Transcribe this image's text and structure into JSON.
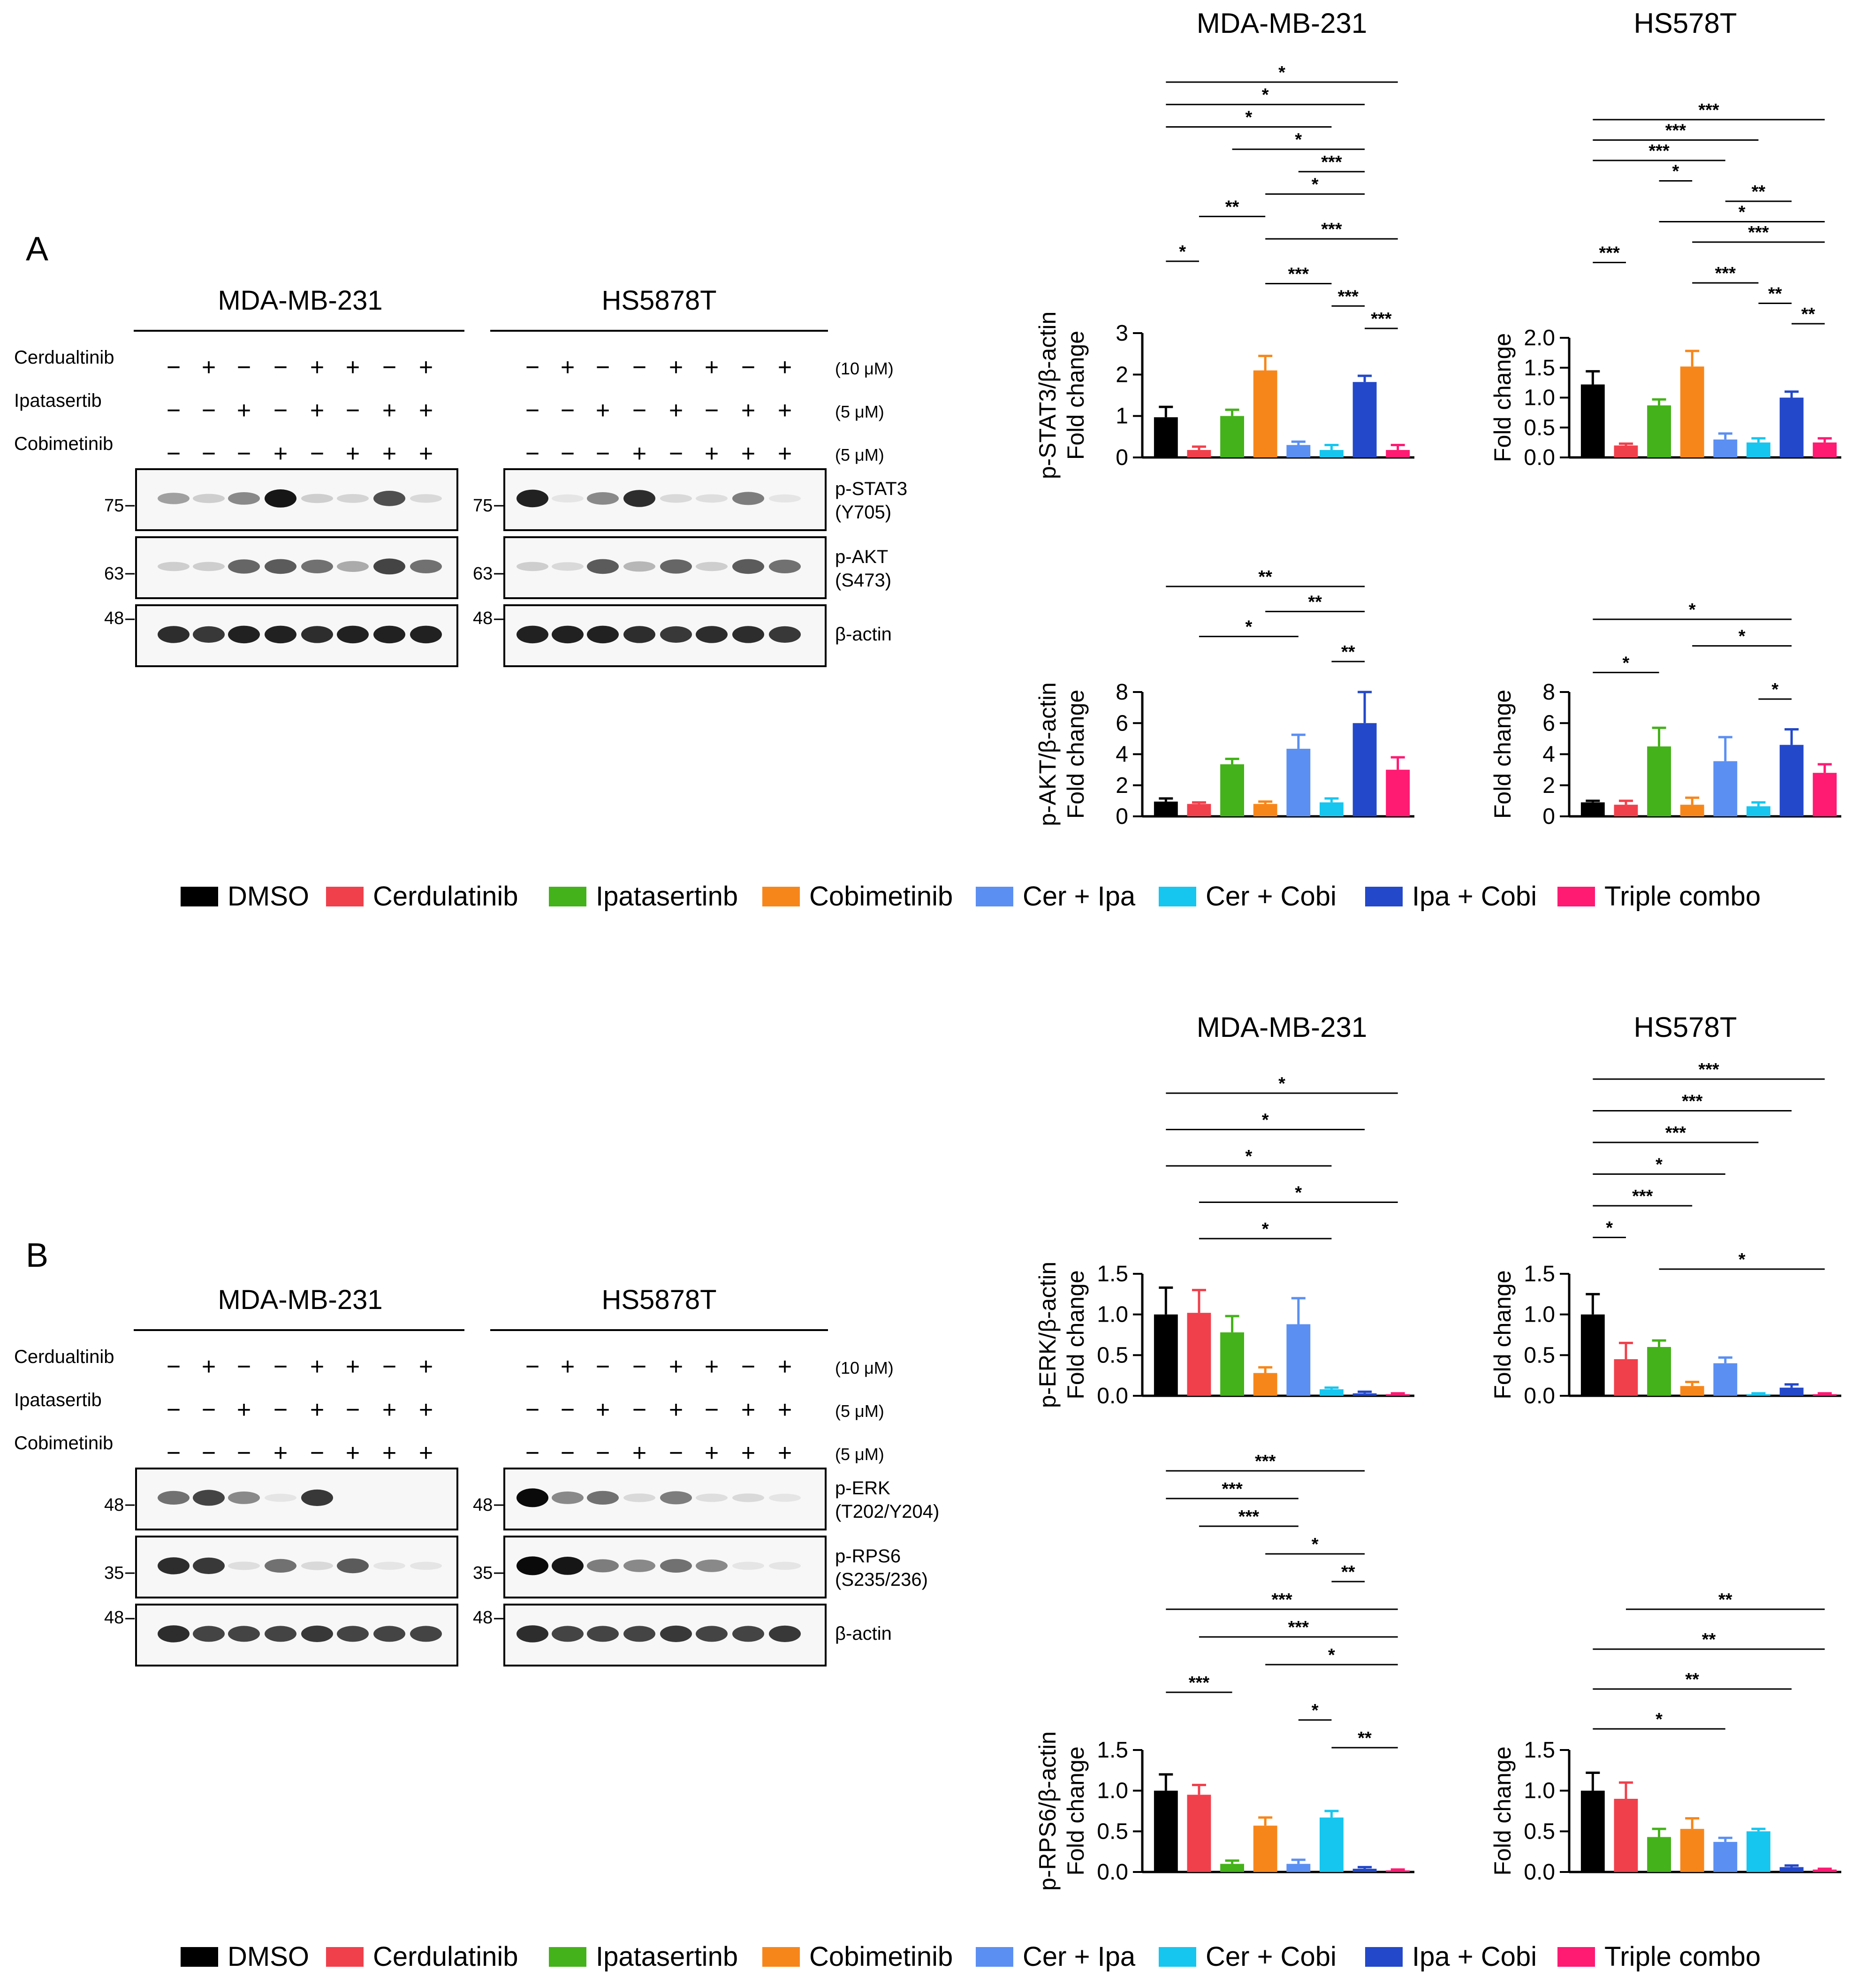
{
  "figure": {
    "panel_a_letter": "A",
    "panel_b_letter": "B"
  },
  "blots": {
    "panel_a": {
      "cell_lines": [
        "MDA-MB-231",
        "HS5878T"
      ],
      "treatment_rows": [
        {
          "name": "Cerdualtinib",
          "conc": "(10 μM)",
          "signs": [
            "−",
            "+",
            "−",
            "−",
            "+",
            "+",
            "−",
            "+"
          ]
        },
        {
          "name": "Ipatasertib",
          "conc": "(5 μM)",
          "signs": [
            "−",
            "−",
            "+",
            "−",
            "+",
            "−",
            "+",
            "+"
          ]
        },
        {
          "name": "Cobimetinib",
          "conc": "(5 μM)",
          "signs": [
            "−",
            "−",
            "−",
            "+",
            "−",
            "+",
            "+",
            "+"
          ]
        }
      ],
      "rows": [
        {
          "label1": "p-STAT3",
          "label2": "(Y705)",
          "marker": "75"
        },
        {
          "label1": "p-AKT",
          "label2": "(S473)",
          "marker": "63"
        },
        {
          "label1": "β-actin",
          "label2": "",
          "marker": "48"
        }
      ]
    },
    "panel_b": {
      "cell_lines": [
        "MDA-MB-231",
        "HS5878T"
      ],
      "treatment_rows": [
        {
          "name": "Cerdualtinib",
          "conc": "(10 μM)",
          "signs": [
            "−",
            "+",
            "−",
            "−",
            "+",
            "+",
            "−",
            "+"
          ]
        },
        {
          "name": "Ipatasertib",
          "conc": "(5 μM)",
          "signs": [
            "−",
            "−",
            "+",
            "−",
            "+",
            "−",
            "+",
            "+"
          ]
        },
        {
          "name": "Cobimetinib",
          "conc": "(5 μM)",
          "signs": [
            "−",
            "−",
            "−",
            "+",
            "−",
            "+",
            "+",
            "+"
          ]
        }
      ],
      "rows": [
        {
          "label1": "p-ERK",
          "label2": "(T202/Y204)",
          "marker": "48"
        },
        {
          "label1": "p-RPS6",
          "label2": "(S235/236)",
          "marker": "35"
        },
        {
          "label1": "β-actin",
          "label2": "",
          "marker": "48"
        }
      ]
    }
  },
  "legend": {
    "items": [
      {
        "label": "DMSO",
        "color": "#000000"
      },
      {
        "label": "Cerdulatinib",
        "color": "#f0404c"
      },
      {
        "label": "Ipatasertinb",
        "color": "#44b21a"
      },
      {
        "label": "Cobimetinib",
        "color": "#f7861a"
      },
      {
        "label": "Cer + Ipa",
        "color": "#5b8ff2"
      },
      {
        "label": "Cer + Cobi",
        "color": "#16c6ef"
      },
      {
        "label": "Ipa + Cobi",
        "color": "#2348c9"
      },
      {
        "label": "Triple combo",
        "color": "#ff1a72"
      }
    ]
  },
  "chart_data": [
    {
      "type": "bar",
      "title": "MDA-MB-231",
      "ylabel1": "p-STAT3/β-actin",
      "ylabel2": "Fold change",
      "categories": [
        "DMSO",
        "Cerdulatinib",
        "Ipatasertinb",
        "Cobimetinib",
        "Cer + Ipa",
        "Cer + Cobi",
        "Ipa + Cobi",
        "Triple combo"
      ],
      "values": [
        0.97,
        0.18,
        1.0,
        2.1,
        0.3,
        0.18,
        1.82,
        0.18
      ],
      "errors": [
        0.25,
        0.08,
        0.15,
        0.35,
        0.08,
        0.12,
        0.15,
        0.12
      ],
      "ylim": [
        0,
        3
      ],
      "ticks": [
        "0",
        "1",
        "2",
        "3"
      ],
      "tick_values": [
        0,
        1,
        2,
        3
      ],
      "sig": [
        {
          "a": 0,
          "b": 7,
          "label": "*"
        },
        {
          "a": 0,
          "b": 6,
          "label": "*"
        },
        {
          "a": 0,
          "b": 5,
          "label": "*"
        },
        {
          "a": 2,
          "b": 6,
          "label": "*"
        },
        {
          "a": 4,
          "b": 6,
          "label": "***"
        },
        {
          "a": 3,
          "b": 6,
          "label": "*"
        },
        {
          "a": 1,
          "b": 3,
          "label": "**"
        },
        {
          "a": 3,
          "b": 7,
          "label": "***"
        },
        {
          "a": 0,
          "b": 1,
          "label": "*"
        },
        {
          "a": 3,
          "b": 5,
          "label": "***"
        },
        {
          "a": 5,
          "b": 6,
          "label": "***"
        },
        {
          "a": 6,
          "b": 7,
          "label": "***"
        }
      ]
    },
    {
      "type": "bar",
      "title": "HS578T",
      "ylabel1": "",
      "ylabel2": "Fold change",
      "categories": [
        "DMSO",
        "Cerdulatinib",
        "Ipatasertinb",
        "Cobimetinib",
        "Cer + Ipa",
        "Cer + Cobi",
        "Ipa + Cobi",
        "Triple combo"
      ],
      "values": [
        1.22,
        0.2,
        0.87,
        1.52,
        0.3,
        0.25,
        1.0,
        0.25
      ],
      "errors": [
        0.22,
        0.03,
        0.1,
        0.26,
        0.1,
        0.07,
        0.1,
        0.07
      ],
      "ylim": [
        0,
        2
      ],
      "ticks": [
        "0.0",
        "0.5",
        "1.0",
        "1.5",
        "2.0"
      ],
      "tick_values": [
        0,
        0.5,
        1,
        1.5,
        2
      ],
      "sig": [
        {
          "a": 0,
          "b": 7,
          "label": "***"
        },
        {
          "a": 0,
          "b": 5,
          "label": "***"
        },
        {
          "a": 0,
          "b": 4,
          "label": "***"
        },
        {
          "a": 2,
          "b": 3,
          "label": "*"
        },
        {
          "a": 4,
          "b": 6,
          "label": "**"
        },
        {
          "a": 2,
          "b": 7,
          "label": "*"
        },
        {
          "a": 3,
          "b": 7,
          "label": "***"
        },
        {
          "a": 0,
          "b": 1,
          "label": "***"
        },
        {
          "a": 3,
          "b": 5,
          "label": "***"
        },
        {
          "a": 5,
          "b": 6,
          "label": "**"
        },
        {
          "a": 6,
          "b": 7,
          "label": "**"
        }
      ]
    },
    {
      "type": "bar",
      "title": "",
      "ylabel1": "p-AKT/β-actin",
      "ylabel2": "Fold change",
      "categories": [
        "DMSO",
        "Cerdulatinib",
        "Ipatasertinb",
        "Cobimetinib",
        "Cer + Ipa",
        "Cer + Cobi",
        "Ipa + Cobi",
        "Triple combo"
      ],
      "values": [
        0.95,
        0.8,
        3.35,
        0.8,
        4.35,
        0.9,
        6.0,
        3.0
      ],
      "errors": [
        0.2,
        0.1,
        0.35,
        0.15,
        0.9,
        0.25,
        2.0,
        0.8
      ],
      "ylim": [
        0,
        8
      ],
      "ticks": [
        "0",
        "2",
        "4",
        "6",
        "8"
      ],
      "tick_values": [
        0,
        2,
        4,
        6,
        8
      ],
      "sig": [
        {
          "a": 0,
          "b": 6,
          "label": "**"
        },
        {
          "a": 3,
          "b": 6,
          "label": "**"
        },
        {
          "a": 1,
          "b": 4,
          "label": "*"
        },
        {
          "a": 5,
          "b": 6,
          "label": "**"
        }
      ]
    },
    {
      "type": "bar",
      "title": "",
      "ylabel1": "",
      "ylabel2": "Fold change",
      "categories": [
        "DMSO",
        "Cerdulatinib",
        "Ipatasertinb",
        "Cobimetinib",
        "Cer + Ipa",
        "Cer + Cobi",
        "Ipa + Cobi",
        "Triple combo"
      ],
      "values": [
        0.9,
        0.75,
        4.5,
        0.75,
        3.55,
        0.65,
        4.6,
        2.8
      ],
      "errors": [
        0.1,
        0.25,
        1.2,
        0.45,
        1.55,
        0.25,
        1.0,
        0.55
      ],
      "ylim": [
        0,
        8
      ],
      "ticks": [
        "0",
        "2",
        "4",
        "6",
        "8"
      ],
      "tick_values": [
        0,
        2,
        4,
        6,
        8
      ],
      "sig": [
        {
          "a": 0,
          "b": 6,
          "label": "*"
        },
        {
          "a": 3,
          "b": 6,
          "label": "*"
        },
        {
          "a": 0,
          "b": 2,
          "label": "*"
        },
        {
          "a": 5,
          "b": 6,
          "label": "*"
        }
      ]
    },
    {
      "type": "bar",
      "title": "MDA-MB-231",
      "ylabel1": "p-ERK/β-actin",
      "ylabel2": "Fold change",
      "categories": [
        "DMSO",
        "Cerdulatinib",
        "Ipatasertinb",
        "Cobimetinib",
        "Cer + Ipa",
        "Cer + Cobi",
        "Ipa + Cobi",
        "Triple combo"
      ],
      "values": [
        1.0,
        1.02,
        0.78,
        0.28,
        0.88,
        0.08,
        0.03,
        0.02
      ],
      "errors": [
        0.33,
        0.28,
        0.2,
        0.07,
        0.32,
        0.02,
        0.02,
        0.01
      ],
      "ylim": [
        0,
        1.5
      ],
      "ticks": [
        "0.0",
        "0.5",
        "1.0",
        "1.5"
      ],
      "tick_values": [
        0,
        0.5,
        1,
        1.5
      ],
      "sig": [
        {
          "a": 0,
          "b": 7,
          "label": "*"
        },
        {
          "a": 0,
          "b": 6,
          "label": "*"
        },
        {
          "a": 0,
          "b": 5,
          "label": "*"
        },
        {
          "a": 1,
          "b": 7,
          "label": "*"
        },
        {
          "a": 1,
          "b": 5,
          "label": "*"
        }
      ]
    },
    {
      "type": "bar",
      "title": "HS578T",
      "ylabel1": "",
      "ylabel2": "Fold change",
      "categories": [
        "DMSO",
        "Cerdulatinib",
        "Ipatasertinb",
        "Cobimetinib",
        "Cer + Ipa",
        "Cer + Cobi",
        "Ipa + Cobi",
        "Triple combo"
      ],
      "values": [
        1.0,
        0.45,
        0.6,
        0.12,
        0.4,
        0.02,
        0.1,
        0.02
      ],
      "errors": [
        0.25,
        0.2,
        0.08,
        0.05,
        0.07,
        0.01,
        0.04,
        0.01
      ],
      "ylim": [
        0,
        1.5
      ],
      "ticks": [
        "0.0",
        "0.5",
        "1.0",
        "1.5"
      ],
      "tick_values": [
        0,
        0.5,
        1,
        1.5
      ],
      "sig": [
        {
          "a": 0,
          "b": 7,
          "label": "***"
        },
        {
          "a": 0,
          "b": 6,
          "label": "***"
        },
        {
          "a": 0,
          "b": 5,
          "label": "***"
        },
        {
          "a": 0,
          "b": 4,
          "label": "*"
        },
        {
          "a": 0,
          "b": 3,
          "label": "***"
        },
        {
          "a": 0,
          "b": 1,
          "label": "*"
        },
        {
          "a": 2,
          "b": 7,
          "label": "*"
        }
      ]
    },
    {
      "type": "bar",
      "title": "",
      "ylabel1": "p-RPS6/β-actin",
      "ylabel2": "Fold change",
      "categories": [
        "DMSO",
        "Cerdulatinib",
        "Ipatasertinb",
        "Cobimetinib",
        "Cer + Ipa",
        "Cer + Cobi",
        "Ipa + Cobi",
        "Triple combo"
      ],
      "values": [
        1.0,
        0.95,
        0.1,
        0.57,
        0.1,
        0.67,
        0.04,
        0.02
      ],
      "errors": [
        0.2,
        0.12,
        0.04,
        0.1,
        0.05,
        0.08,
        0.02,
        0.01
      ],
      "ylim": [
        0,
        1.5
      ],
      "ticks": [
        "0.0",
        "0.5",
        "1.0",
        "1.5"
      ],
      "tick_values": [
        0,
        0.5,
        1,
        1.5
      ],
      "sig": [
        {
          "a": 0,
          "b": 6,
          "label": "***"
        },
        {
          "a": 0,
          "b": 4,
          "label": "***"
        },
        {
          "a": 1,
          "b": 4,
          "label": "***"
        },
        {
          "a": 3,
          "b": 6,
          "label": "*"
        },
        {
          "a": 5,
          "b": 6,
          "label": "**"
        },
        {
          "a": 0,
          "b": 7,
          "label": "***"
        },
        {
          "a": 1,
          "b": 7,
          "label": "***"
        },
        {
          "a": 3,
          "b": 7,
          "label": "*"
        },
        {
          "a": 0,
          "b": 2,
          "label": "***"
        },
        {
          "a": 4,
          "b": 5,
          "label": "*"
        },
        {
          "a": 5,
          "b": 7,
          "label": "**"
        }
      ]
    },
    {
      "type": "bar",
      "title": "",
      "ylabel1": "",
      "ylabel2": "Fold change",
      "categories": [
        "DMSO",
        "Cerdulatinib",
        "Ipatasertinb",
        "Cobimetinib",
        "Cer + Ipa",
        "Cer + Cobi",
        "Ipa + Cobi",
        "Triple combo"
      ],
      "values": [
        1.0,
        0.9,
        0.43,
        0.53,
        0.37,
        0.5,
        0.06,
        0.03
      ],
      "errors": [
        0.22,
        0.2,
        0.1,
        0.13,
        0.05,
        0.03,
        0.02,
        0.01
      ],
      "ylim": [
        0,
        1.5
      ],
      "ticks": [
        "0.0",
        "0.5",
        "1.0",
        "1.5"
      ],
      "tick_values": [
        0,
        0.5,
        1,
        1.5
      ],
      "sig": [
        {
          "a": 1,
          "b": 7,
          "label": "**"
        },
        {
          "a": 0,
          "b": 7,
          "label": "**"
        },
        {
          "a": 0,
          "b": 6,
          "label": "**"
        },
        {
          "a": 0,
          "b": 4,
          "label": "*"
        }
      ]
    }
  ]
}
